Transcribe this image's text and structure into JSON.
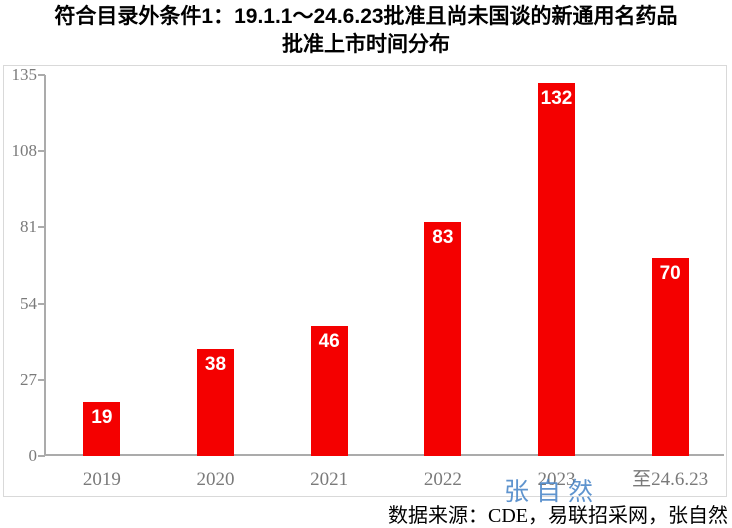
{
  "title": {
    "line1": "符合目录外条件1：19.1.1～24.6.23批准且尚未国谈的新通用名药品",
    "line2": "批准上市时间分布"
  },
  "chart_data": {
    "type": "bar",
    "title": "符合目录外条件1：19.1.1～24.6.23批准且尚未国谈的新通用名药品 批准上市时间分布",
    "categories": [
      "2019",
      "2020",
      "2021",
      "2022",
      "2023",
      "至24.6.23"
    ],
    "values": [
      19,
      38,
      46,
      83,
      132,
      70
    ],
    "y_ticks": [
      0,
      27,
      54,
      81,
      108,
      135
    ],
    "ylim": [
      0,
      135
    ],
    "xlabel": "",
    "ylabel": "",
    "grid": false,
    "legend_position": "none",
    "bar_color": "#f40000",
    "value_label_color": "#ffffff",
    "axis_text_color": "#7a7a7a"
  },
  "watermark": {
    "text": "张自然",
    "color": "#4a86c8"
  },
  "source_note": "数据来源：CDE，易联招采网，张自然"
}
